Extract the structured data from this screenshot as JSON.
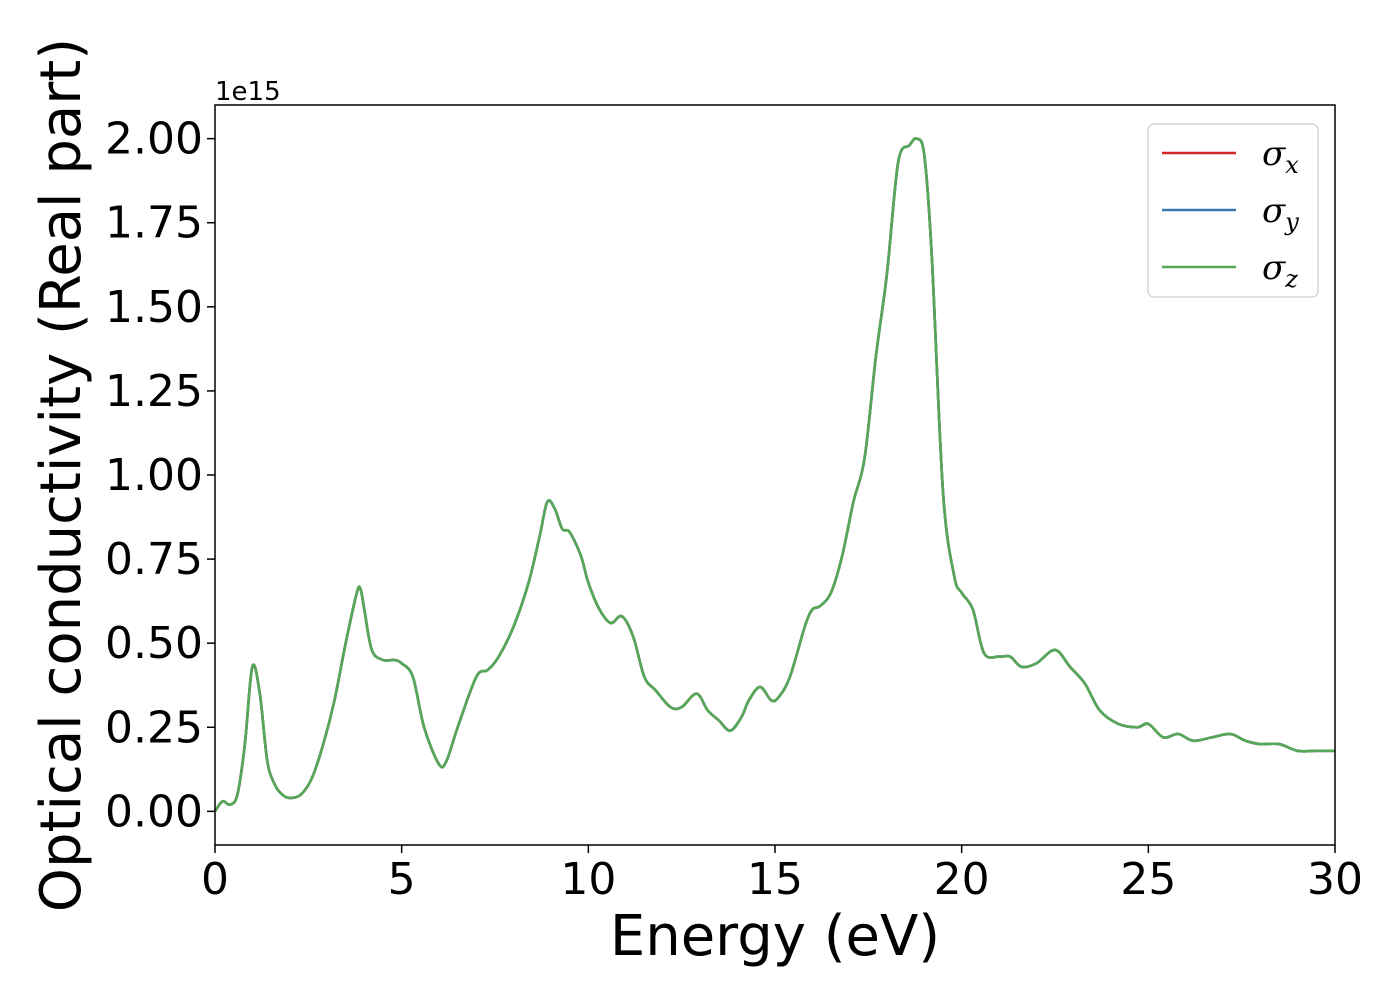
{
  "chart_data": {
    "type": "line",
    "title": "",
    "xlabel": "Energy (eV)",
    "ylabel": "Optical conductivity (Real part)",
    "y_offset_label": "1e15",
    "xlim": [
      0,
      30
    ],
    "ylim": [
      -0.1,
      2.1
    ],
    "xticks": [
      0,
      5,
      10,
      15,
      20,
      25,
      30
    ],
    "yticks": [
      "0.00",
      "0.25",
      "0.50",
      "0.75",
      "1.00",
      "1.25",
      "1.50",
      "1.75",
      "2.00"
    ],
    "grid": false,
    "legend": {
      "placement": "top-right",
      "entries": [
        {
          "base": "σ",
          "sub": "x",
          "color": "#d62728"
        },
        {
          "base": "σ",
          "sub": "y",
          "color": "#3a78b0"
        },
        {
          "base": "σ",
          "sub": "z",
          "color": "#55a855"
        }
      ]
    },
    "x": [
      0,
      0.2,
      0.4,
      0.6,
      0.8,
      1.0,
      1.2,
      1.4,
      1.6,
      1.8,
      2.0,
      2.3,
      2.6,
      2.9,
      3.2,
      3.5,
      3.8,
      3.9,
      4.0,
      4.2,
      4.5,
      4.8,
      5.0,
      5.3,
      5.6,
      6.0,
      6.2,
      6.5,
      7.0,
      7.3,
      7.6,
      8.0,
      8.4,
      8.7,
      8.9,
      9.1,
      9.3,
      9.5,
      9.8,
      10.0,
      10.3,
      10.6,
      10.9,
      11.2,
      11.5,
      11.8,
      12.2,
      12.5,
      12.9,
      13.2,
      13.5,
      13.8,
      14.1,
      14.3,
      14.6,
      14.9,
      15.1,
      15.4,
      15.8,
      16.0,
      16.2,
      16.5,
      16.8,
      17.1,
      17.4,
      17.7,
      18.0,
      18.3,
      18.6,
      18.8,
      19.0,
      19.2,
      19.5,
      19.8,
      20.0,
      20.3,
      20.6,
      21.0,
      21.3,
      21.6,
      22.0,
      22.5,
      22.9,
      23.3,
      23.7,
      24.2,
      24.7,
      25.0,
      25.4,
      25.8,
      26.2,
      26.7,
      27.2,
      27.6,
      28.0,
      28.5,
      29.0,
      29.5,
      30.0
    ],
    "series": [
      {
        "name": "σx",
        "color": "#d62728",
        "values": [
          0.0,
          0.03,
          0.02,
          0.05,
          0.2,
          0.43,
          0.35,
          0.15,
          0.08,
          0.05,
          0.04,
          0.05,
          0.1,
          0.2,
          0.33,
          0.5,
          0.65,
          0.66,
          0.6,
          0.48,
          0.45,
          0.45,
          0.44,
          0.4,
          0.25,
          0.14,
          0.15,
          0.25,
          0.4,
          0.42,
          0.46,
          0.55,
          0.68,
          0.82,
          0.92,
          0.9,
          0.84,
          0.83,
          0.76,
          0.68,
          0.6,
          0.56,
          0.58,
          0.52,
          0.4,
          0.36,
          0.31,
          0.31,
          0.35,
          0.3,
          0.27,
          0.24,
          0.28,
          0.33,
          0.37,
          0.33,
          0.34,
          0.4,
          0.55,
          0.6,
          0.61,
          0.65,
          0.76,
          0.92,
          1.05,
          1.35,
          1.6,
          1.93,
          1.98,
          2.0,
          1.95,
          1.65,
          0.95,
          0.7,
          0.65,
          0.6,
          0.47,
          0.46,
          0.46,
          0.43,
          0.44,
          0.48,
          0.43,
          0.38,
          0.3,
          0.26,
          0.25,
          0.26,
          0.22,
          0.23,
          0.21,
          0.22,
          0.23,
          0.21,
          0.2,
          0.2,
          0.18,
          0.18,
          0.18
        ]
      },
      {
        "name": "σy",
        "color": "#3a78b0",
        "values": [
          0.0,
          0.03,
          0.02,
          0.05,
          0.2,
          0.43,
          0.35,
          0.15,
          0.08,
          0.05,
          0.04,
          0.05,
          0.1,
          0.2,
          0.33,
          0.5,
          0.65,
          0.66,
          0.6,
          0.48,
          0.45,
          0.45,
          0.44,
          0.4,
          0.25,
          0.14,
          0.15,
          0.25,
          0.4,
          0.42,
          0.46,
          0.55,
          0.68,
          0.82,
          0.92,
          0.9,
          0.84,
          0.83,
          0.76,
          0.68,
          0.6,
          0.56,
          0.58,
          0.52,
          0.4,
          0.36,
          0.31,
          0.31,
          0.35,
          0.3,
          0.27,
          0.24,
          0.28,
          0.33,
          0.37,
          0.33,
          0.34,
          0.4,
          0.55,
          0.6,
          0.61,
          0.65,
          0.76,
          0.92,
          1.05,
          1.35,
          1.6,
          1.93,
          1.98,
          2.0,
          1.95,
          1.65,
          0.95,
          0.7,
          0.65,
          0.6,
          0.47,
          0.46,
          0.46,
          0.43,
          0.44,
          0.48,
          0.43,
          0.38,
          0.3,
          0.26,
          0.25,
          0.26,
          0.22,
          0.23,
          0.21,
          0.22,
          0.23,
          0.21,
          0.2,
          0.2,
          0.18,
          0.18,
          0.18
        ]
      },
      {
        "name": "σz",
        "color": "#55a855",
        "values": [
          0.0,
          0.03,
          0.02,
          0.05,
          0.2,
          0.43,
          0.35,
          0.15,
          0.08,
          0.05,
          0.04,
          0.05,
          0.1,
          0.2,
          0.33,
          0.5,
          0.65,
          0.66,
          0.6,
          0.48,
          0.45,
          0.45,
          0.44,
          0.4,
          0.25,
          0.14,
          0.15,
          0.25,
          0.4,
          0.42,
          0.46,
          0.55,
          0.68,
          0.82,
          0.92,
          0.9,
          0.84,
          0.83,
          0.76,
          0.68,
          0.6,
          0.56,
          0.58,
          0.52,
          0.4,
          0.36,
          0.31,
          0.31,
          0.35,
          0.3,
          0.27,
          0.24,
          0.28,
          0.33,
          0.37,
          0.33,
          0.34,
          0.4,
          0.55,
          0.6,
          0.61,
          0.65,
          0.76,
          0.92,
          1.05,
          1.35,
          1.6,
          1.93,
          1.98,
          2.0,
          1.95,
          1.65,
          0.95,
          0.7,
          0.65,
          0.6,
          0.47,
          0.46,
          0.46,
          0.43,
          0.44,
          0.48,
          0.43,
          0.38,
          0.3,
          0.26,
          0.25,
          0.26,
          0.22,
          0.23,
          0.21,
          0.22,
          0.23,
          0.21,
          0.2,
          0.2,
          0.18,
          0.18,
          0.18
        ]
      }
    ]
  }
}
